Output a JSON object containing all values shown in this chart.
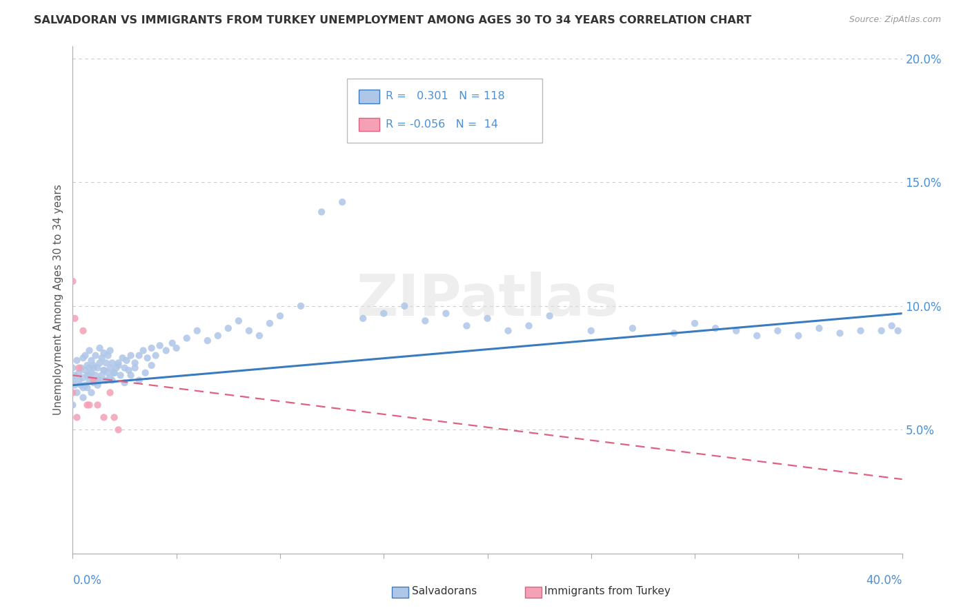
{
  "title": "SALVADORAN VS IMMIGRANTS FROM TURKEY UNEMPLOYMENT AMONG AGES 30 TO 34 YEARS CORRELATION CHART",
  "source_text": "Source: ZipAtlas.com",
  "ylabel": "Unemployment Among Ages 30 to 34 years",
  "xlim": [
    0.0,
    0.4
  ],
  "ylim": [
    0.0,
    0.205
  ],
  "ytick_vals": [
    0.0,
    0.05,
    0.1,
    0.15,
    0.2
  ],
  "ytick_labels": [
    "",
    "5.0%",
    "10.0%",
    "15.0%",
    "20.0%"
  ],
  "watermark": "ZIPatlas",
  "salvadoran_color": "#aec6e8",
  "turkey_color": "#f4a0b5",
  "trend_salvadoran_color": "#3a7abf",
  "trend_turkey_color": "#e06080",
  "salvadoran_r": 0.301,
  "salvadoran_n": 118,
  "turkey_r": -0.056,
  "turkey_n": 14,
  "sal_x": [
    0.0,
    0.0,
    0.0,
    0.001,
    0.001,
    0.002,
    0.002,
    0.003,
    0.003,
    0.004,
    0.004,
    0.005,
    0.005,
    0.005,
    0.006,
    0.006,
    0.006,
    0.007,
    0.007,
    0.007,
    0.008,
    0.008,
    0.008,
    0.009,
    0.009,
    0.009,
    0.01,
    0.01,
    0.011,
    0.011,
    0.012,
    0.012,
    0.013,
    0.013,
    0.013,
    0.014,
    0.014,
    0.015,
    0.015,
    0.016,
    0.016,
    0.017,
    0.017,
    0.018,
    0.018,
    0.019,
    0.019,
    0.02,
    0.021,
    0.022,
    0.023,
    0.024,
    0.025,
    0.026,
    0.027,
    0.028,
    0.03,
    0.032,
    0.034,
    0.036,
    0.038,
    0.04,
    0.042,
    0.045,
    0.048,
    0.05,
    0.055,
    0.06,
    0.065,
    0.07,
    0.075,
    0.08,
    0.085,
    0.09,
    0.095,
    0.1,
    0.11,
    0.12,
    0.13,
    0.14,
    0.15,
    0.16,
    0.17,
    0.18,
    0.19,
    0.2,
    0.21,
    0.22,
    0.23,
    0.25,
    0.27,
    0.29,
    0.3,
    0.31,
    0.32,
    0.33,
    0.34,
    0.35,
    0.36,
    0.37,
    0.38,
    0.39,
    0.395,
    0.398,
    0.005,
    0.008,
    0.01,
    0.012,
    0.015,
    0.018,
    0.02,
    0.022,
    0.025,
    0.028,
    0.03,
    0.032,
    0.035,
    0.038
  ],
  "sal_y": [
    0.07,
    0.06,
    0.075,
    0.068,
    0.072,
    0.065,
    0.078,
    0.07,
    0.073,
    0.068,
    0.075,
    0.063,
    0.071,
    0.079,
    0.068,
    0.074,
    0.08,
    0.067,
    0.072,
    0.076,
    0.07,
    0.075,
    0.082,
    0.065,
    0.073,
    0.078,
    0.069,
    0.076,
    0.072,
    0.08,
    0.068,
    0.075,
    0.07,
    0.077,
    0.083,
    0.072,
    0.079,
    0.074,
    0.081,
    0.07,
    0.077,
    0.073,
    0.08,
    0.075,
    0.082,
    0.07,
    0.077,
    0.073,
    0.075,
    0.077,
    0.072,
    0.079,
    0.075,
    0.078,
    0.074,
    0.08,
    0.077,
    0.08,
    0.082,
    0.079,
    0.083,
    0.08,
    0.084,
    0.082,
    0.085,
    0.083,
    0.087,
    0.09,
    0.086,
    0.088,
    0.091,
    0.094,
    0.09,
    0.088,
    0.093,
    0.096,
    0.1,
    0.138,
    0.142,
    0.095,
    0.097,
    0.1,
    0.094,
    0.097,
    0.092,
    0.095,
    0.09,
    0.092,
    0.096,
    0.09,
    0.091,
    0.089,
    0.093,
    0.091,
    0.09,
    0.088,
    0.09,
    0.088,
    0.091,
    0.089,
    0.09,
    0.09,
    0.092,
    0.09,
    0.067,
    0.072,
    0.075,
    0.07,
    0.074,
    0.071,
    0.073,
    0.076,
    0.069,
    0.072,
    0.075,
    0.07,
    0.073,
    0.076
  ],
  "tur_x": [
    0.0,
    0.001,
    0.003,
    0.005,
    0.007,
    0.01,
    0.012,
    0.015,
    0.018,
    0.022,
    0.0,
    0.002,
    0.008,
    0.02
  ],
  "tur_y": [
    0.11,
    0.095,
    0.075,
    0.09,
    0.06,
    0.07,
    0.06,
    0.055,
    0.065,
    0.05,
    0.065,
    0.055,
    0.06,
    0.055
  ],
  "sal_trend_x0": 0.0,
  "sal_trend_y0": 0.068,
  "sal_trend_x1": 0.4,
  "sal_trend_y1": 0.097,
  "tur_trend_x0": 0.0,
  "tur_trend_y0": 0.072,
  "tur_trend_x1": 0.4,
  "tur_trend_y1": 0.03
}
